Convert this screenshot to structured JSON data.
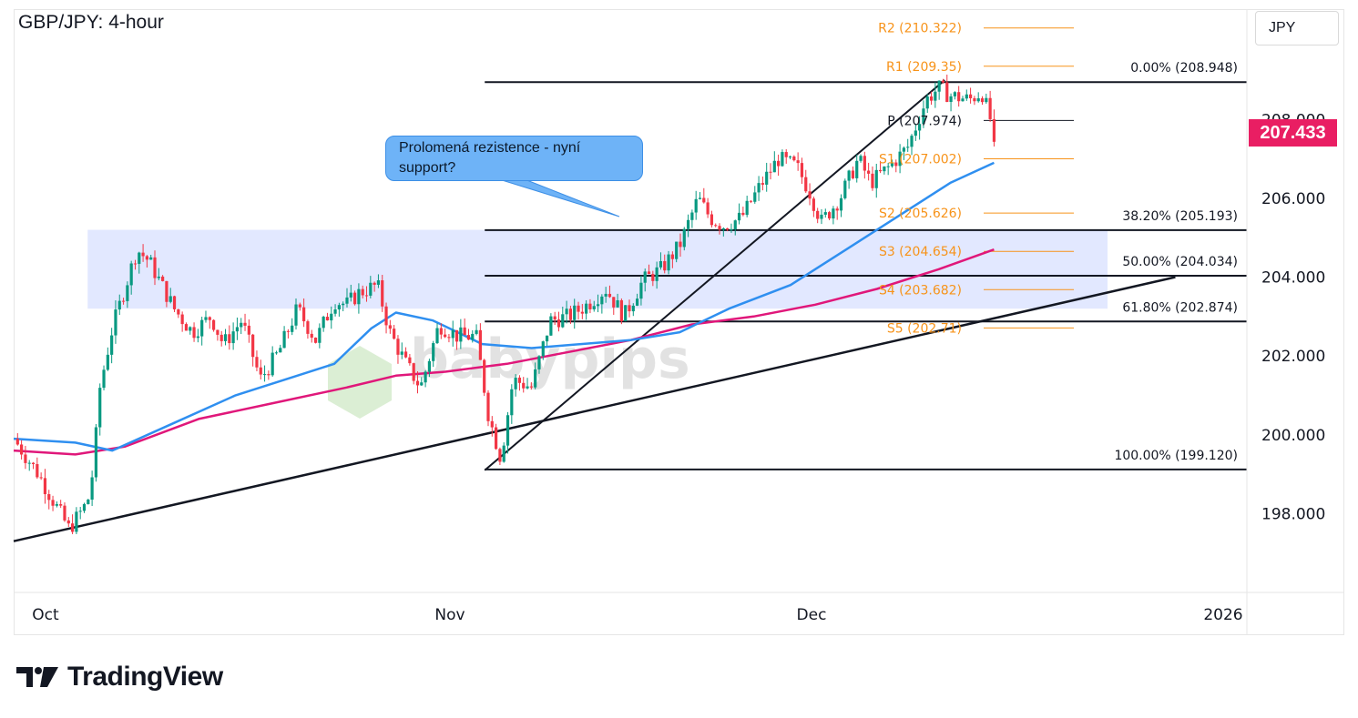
{
  "title": "GBP/JPY: 4-hour",
  "currency": "JPY",
  "current_price": "207.433",
  "callout": "Prolomená rezistence - nyní support?",
  "watermark": "babypips",
  "brand": "TradingView",
  "colors": {
    "up": "#089981",
    "down": "#f23645",
    "ma_blue": "#2f8ff0",
    "ma_magenta": "#e0177a",
    "pivot": "#f7931a",
    "zone": "#dfe6ff",
    "price_tag": "#e91e63"
  },
  "chart_data": {
    "type": "candlestick",
    "title": "GBP/JPY: 4-hour",
    "y_range": [
      196.0,
      210.8
    ],
    "y_ticks": [
      "198.000",
      "200.000",
      "202.000",
      "204.000",
      "206.000",
      "208.000"
    ],
    "x_ticks": [
      "Oct",
      "Nov",
      "Dec",
      "2026"
    ],
    "last_price": 207.433,
    "pivots": [
      {
        "label": "R2 (210.322)",
        "value": 210.322,
        "color": "#f7931a"
      },
      {
        "label": "R1 (209.35)",
        "value": 209.35,
        "color": "#f7931a"
      },
      {
        "label": "P (207.974)",
        "value": 207.974,
        "color": "#131722"
      },
      {
        "label": "S1 (207.002)",
        "value": 207.002,
        "color": "#f7931a"
      },
      {
        "label": "S2 (205.626)",
        "value": 205.626,
        "color": "#f7931a"
      },
      {
        "label": "S3 (204.654)",
        "value": 204.654,
        "color": "#f7931a"
      },
      {
        "label": "S4 (203.682)",
        "value": 203.682,
        "color": "#f7931a"
      },
      {
        "label": "S5 (202.71)",
        "value": 202.71,
        "color": "#f7931a"
      }
    ],
    "fibonacci": [
      {
        "label": "0.00% (208.948)",
        "value": 208.948
      },
      {
        "label": "38.20% (205.193)",
        "value": 205.193
      },
      {
        "label": "50.00% (204.034)",
        "value": 204.034
      },
      {
        "label": "61.80% (202.874)",
        "value": 202.874
      },
      {
        "label": "100.00% (199.120)",
        "value": 199.12
      }
    ],
    "zone": {
      "low": 203.2,
      "high": 205.2
    },
    "trendline_long": [
      {
        "t": 0.0,
        "v": 197.3
      },
      {
        "t": 0.942,
        "v": 204.0
      }
    ],
    "trendline_channel": [
      {
        "t": 0.382,
        "v": 199.1
      },
      {
        "t": 0.755,
        "v": 209.0
      }
    ],
    "price_path": [
      [
        0.0,
        199.9
      ],
      [
        0.02,
        199.0
      ],
      [
        0.045,
        197.6
      ],
      [
        0.06,
        198.3
      ],
      [
        0.066,
        199.4
      ],
      [
        0.068,
        200.9
      ],
      [
        0.08,
        202.7
      ],
      [
        0.1,
        204.7
      ],
      [
        0.11,
        204.4
      ],
      [
        0.13,
        203.2
      ],
      [
        0.145,
        202.6
      ],
      [
        0.16,
        203.0
      ],
      [
        0.17,
        202.3
      ],
      [
        0.185,
        202.9
      ],
      [
        0.2,
        201.4
      ],
      [
        0.215,
        202.1
      ],
      [
        0.23,
        203.2
      ],
      [
        0.245,
        202.4
      ],
      [
        0.26,
        203.4
      ],
      [
        0.27,
        203.3
      ],
      [
        0.28,
        203.6
      ],
      [
        0.295,
        203.8
      ],
      [
        0.305,
        202.6
      ],
      [
        0.318,
        201.8
      ],
      [
        0.33,
        201.2
      ],
      [
        0.345,
        202.8
      ],
      [
        0.36,
        202.5
      ],
      [
        0.375,
        202.5
      ],
      [
        0.385,
        200.5
      ],
      [
        0.395,
        199.4
      ],
      [
        0.405,
        201.4
      ],
      [
        0.42,
        201.2
      ],
      [
        0.435,
        202.9
      ],
      [
        0.45,
        203.0
      ],
      [
        0.465,
        203.3
      ],
      [
        0.48,
        203.7
      ],
      [
        0.495,
        203.0
      ],
      [
        0.51,
        203.9
      ],
      [
        0.525,
        204.2
      ],
      [
        0.54,
        204.8
      ],
      [
        0.555,
        206.0
      ],
      [
        0.565,
        205.5
      ],
      [
        0.575,
        205.3
      ],
      [
        0.59,
        205.5
      ],
      [
        0.605,
        206.3
      ],
      [
        0.62,
        207.0
      ],
      [
        0.635,
        206.8
      ],
      [
        0.645,
        206.2
      ],
      [
        0.655,
        205.4
      ],
      [
        0.67,
        206.0
      ],
      [
        0.685,
        207.0
      ],
      [
        0.695,
        206.4
      ],
      [
        0.71,
        206.8
      ],
      [
        0.725,
        207.3
      ],
      [
        0.74,
        208.5
      ],
      [
        0.75,
        208.8
      ],
      [
        0.76,
        208.6
      ],
      [
        0.775,
        208.5
      ],
      [
        0.785,
        208.7
      ],
      [
        0.792,
        208.0
      ],
      [
        0.795,
        207.433
      ]
    ],
    "ma_blue": [
      [
        0.0,
        199.9
      ],
      [
        0.05,
        199.8
      ],
      [
        0.08,
        199.6
      ],
      [
        0.13,
        200.3
      ],
      [
        0.18,
        201.0
      ],
      [
        0.23,
        201.5
      ],
      [
        0.26,
        201.8
      ],
      [
        0.29,
        202.7
      ],
      [
        0.31,
        203.1
      ],
      [
        0.34,
        202.9
      ],
      [
        0.38,
        202.3
      ],
      [
        0.42,
        202.2
      ],
      [
        0.46,
        202.3
      ],
      [
        0.5,
        202.4
      ],
      [
        0.54,
        202.6
      ],
      [
        0.58,
        203.2
      ],
      [
        0.63,
        203.8
      ],
      [
        0.68,
        204.8
      ],
      [
        0.72,
        205.6
      ],
      [
        0.76,
        206.4
      ],
      [
        0.795,
        206.9
      ]
    ],
    "ma_magenta": [
      [
        0.0,
        199.6
      ],
      [
        0.05,
        199.5
      ],
      [
        0.09,
        199.7
      ],
      [
        0.15,
        200.4
      ],
      [
        0.21,
        200.8
      ],
      [
        0.27,
        201.2
      ],
      [
        0.31,
        201.5
      ],
      [
        0.35,
        201.6
      ],
      [
        0.4,
        201.8
      ],
      [
        0.45,
        202.1
      ],
      [
        0.5,
        202.4
      ],
      [
        0.55,
        202.8
      ],
      [
        0.6,
        203.0
      ],
      [
        0.65,
        203.3
      ],
      [
        0.7,
        203.7
      ],
      [
        0.75,
        204.2
      ],
      [
        0.795,
        204.7
      ]
    ]
  }
}
